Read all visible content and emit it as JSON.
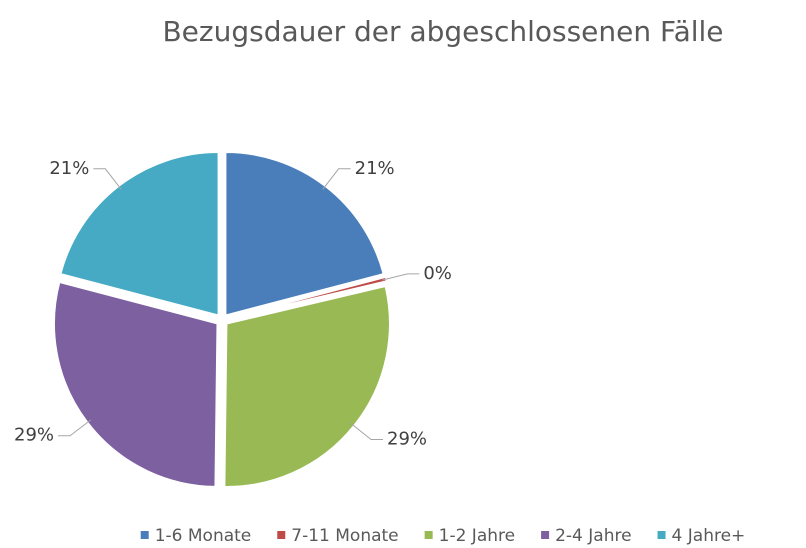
{
  "chart_data": {
    "type": "pie",
    "title": "Bezugsdauer der abgeschlossenen Fälle",
    "categories": [
      "1-6 Monate",
      "7-11 Monate",
      "1-2 Jahre",
      "2-4 Jahre",
      "4 Jahre+"
    ],
    "values": [
      21,
      0.4,
      29,
      29,
      21
    ],
    "value_labels": [
      "21%",
      "0%",
      "29%",
      "29%",
      "21%"
    ],
    "colors": [
      "#4a7ebb",
      "#be4b48",
      "#98b954",
      "#7d60a0",
      "#46aac5"
    ],
    "legend": "bottom"
  }
}
